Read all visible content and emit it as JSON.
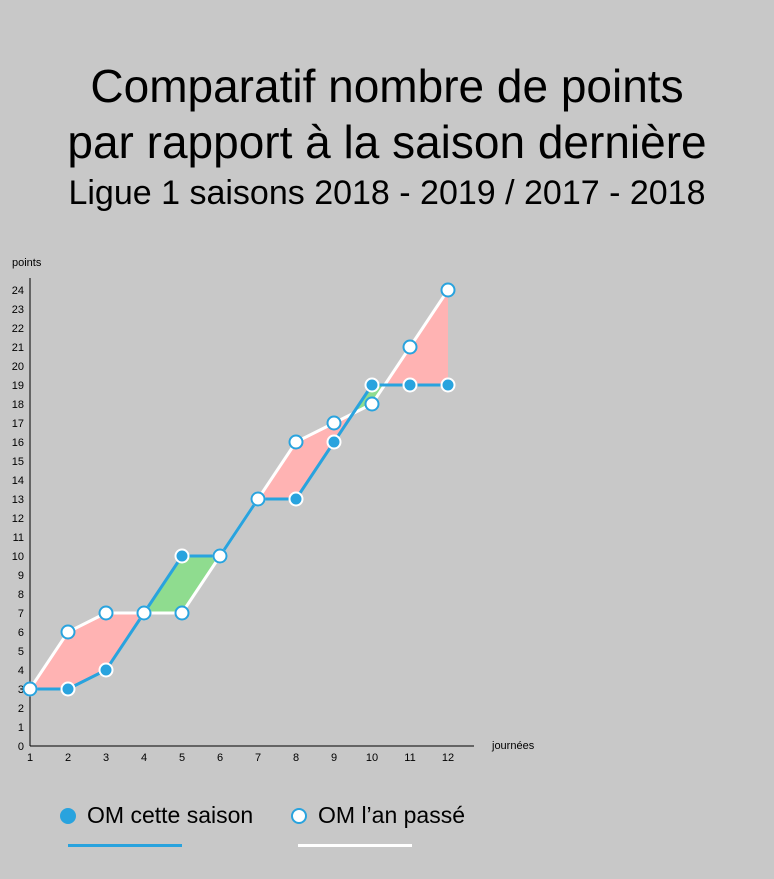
{
  "title_line1": "Comparatif nombre de points",
  "title_line2": "par rapport à la saison dernière",
  "subtitle": "Ligue 1 saisons 2018 - 2019 / 2017 - 2018",
  "legend": {
    "current": "OM cette saison",
    "previous": "OM l’an passé"
  },
  "colors": {
    "background": "#c8c8c8",
    "current": "#29a3de",
    "previous": "#ffffff",
    "behind": "#ffb3b3",
    "ahead": "#8fdc8f"
  },
  "chart_data": {
    "type": "line",
    "xlabel": "journées",
    "ylabel": "points",
    "x": [
      1,
      2,
      3,
      4,
      5,
      6,
      7,
      8,
      9,
      10,
      11,
      12
    ],
    "xlim": [
      1,
      12
    ],
    "ylim": [
      0,
      24
    ],
    "y_ticks": [
      0,
      1,
      2,
      3,
      4,
      5,
      6,
      7,
      8,
      9,
      10,
      11,
      12,
      13,
      14,
      15,
      16,
      17,
      18,
      19,
      20,
      21,
      22,
      23,
      24
    ],
    "grid": false,
    "legend_position": "bottom",
    "series": [
      {
        "name": "OM cette saison",
        "values": [
          3,
          3,
          4,
          7,
          10,
          10,
          13,
          13,
          16,
          19,
          19,
          19
        ]
      },
      {
        "name": "OM l’an passé",
        "values": [
          3,
          6,
          7,
          7,
          7,
          10,
          13,
          16,
          17,
          18,
          21,
          24
        ]
      }
    ]
  }
}
